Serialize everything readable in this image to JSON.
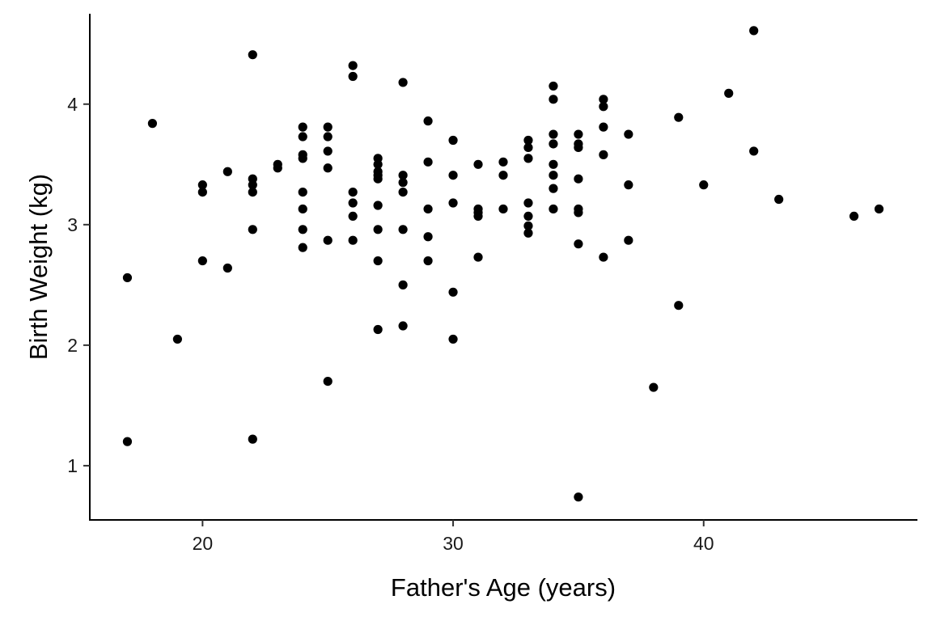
{
  "chart_data": {
    "type": "scatter",
    "title": "",
    "xlabel": "Father's Age (years)",
    "ylabel": "Birth Weight (kg)",
    "xlim": [
      15.5,
      48.5
    ],
    "ylim": [
      0.55,
      4.75
    ],
    "x_ticks": [
      20,
      30,
      40
    ],
    "y_ticks": [
      1,
      2,
      3,
      4
    ],
    "grid": false,
    "legend": "none",
    "point_color": "#000000",
    "points": [
      [
        17,
        2.56
      ],
      [
        17,
        1.2
      ],
      [
        18,
        3.84
      ],
      [
        19,
        2.05
      ],
      [
        20,
        3.33
      ],
      [
        20,
        3.27
      ],
      [
        20,
        2.7
      ],
      [
        21,
        3.44
      ],
      [
        21,
        2.64
      ],
      [
        22,
        4.41
      ],
      [
        22,
        3.38
      ],
      [
        22,
        3.33
      ],
      [
        22,
        3.27
      ],
      [
        22,
        2.96
      ],
      [
        22,
        1.22
      ],
      [
        23,
        3.5
      ],
      [
        23,
        3.47
      ],
      [
        24,
        3.81
      ],
      [
        24,
        3.73
      ],
      [
        24,
        3.58
      ],
      [
        24,
        3.55
      ],
      [
        24,
        3.27
      ],
      [
        24,
        3.13
      ],
      [
        24,
        2.96
      ],
      [
        24,
        2.81
      ],
      [
        25,
        3.81
      ],
      [
        25,
        3.73
      ],
      [
        25,
        3.61
      ],
      [
        25,
        3.47
      ],
      [
        25,
        2.87
      ],
      [
        25,
        1.7
      ],
      [
        26,
        4.32
      ],
      [
        26,
        4.23
      ],
      [
        26,
        3.27
      ],
      [
        26,
        3.18
      ],
      [
        26,
        3.07
      ],
      [
        26,
        2.87
      ],
      [
        27,
        3.55
      ],
      [
        27,
        3.5
      ],
      [
        27,
        3.44
      ],
      [
        27,
        3.41
      ],
      [
        27,
        3.38
      ],
      [
        27,
        3.16
      ],
      [
        27,
        2.96
      ],
      [
        27,
        2.7
      ],
      [
        27,
        2.13
      ],
      [
        28,
        4.18
      ],
      [
        28,
        3.41
      ],
      [
        28,
        3.35
      ],
      [
        28,
        3.27
      ],
      [
        28,
        2.96
      ],
      [
        28,
        2.5
      ],
      [
        28,
        2.16
      ],
      [
        29,
        3.86
      ],
      [
        29,
        3.52
      ],
      [
        29,
        3.13
      ],
      [
        29,
        2.9
      ],
      [
        29,
        2.7
      ],
      [
        30,
        3.7
      ],
      [
        30,
        3.41
      ],
      [
        30,
        3.18
      ],
      [
        30,
        2.44
      ],
      [
        30,
        2.05
      ],
      [
        31,
        3.5
      ],
      [
        31,
        3.13
      ],
      [
        31,
        3.1
      ],
      [
        31,
        3.07
      ],
      [
        31,
        2.73
      ],
      [
        32,
        3.52
      ],
      [
        32,
        3.41
      ],
      [
        32,
        3.13
      ],
      [
        33,
        3.7
      ],
      [
        33,
        3.64
      ],
      [
        33,
        3.55
      ],
      [
        33,
        3.18
      ],
      [
        33,
        3.07
      ],
      [
        33,
        2.99
      ],
      [
        33,
        2.93
      ],
      [
        34,
        4.15
      ],
      [
        34,
        4.04
      ],
      [
        34,
        3.75
      ],
      [
        34,
        3.67
      ],
      [
        34,
        3.5
      ],
      [
        34,
        3.41
      ],
      [
        34,
        3.3
      ],
      [
        34,
        3.13
      ],
      [
        35,
        3.75
      ],
      [
        35,
        3.67
      ],
      [
        35,
        3.64
      ],
      [
        35,
        3.38
      ],
      [
        35,
        3.13
      ],
      [
        35,
        3.1
      ],
      [
        35,
        2.84
      ],
      [
        35,
        0.74
      ],
      [
        36,
        4.04
      ],
      [
        36,
        3.98
      ],
      [
        36,
        3.81
      ],
      [
        36,
        3.58
      ],
      [
        36,
        2.73
      ],
      [
        37,
        3.75
      ],
      [
        37,
        3.33
      ],
      [
        37,
        2.87
      ],
      [
        38,
        1.65
      ],
      [
        39,
        3.89
      ],
      [
        39,
        2.33
      ],
      [
        40,
        3.33
      ],
      [
        41,
        4.09
      ],
      [
        42,
        4.61
      ],
      [
        42,
        3.61
      ],
      [
        43,
        3.21
      ],
      [
        46,
        3.07
      ],
      [
        47,
        3.13
      ]
    ]
  }
}
